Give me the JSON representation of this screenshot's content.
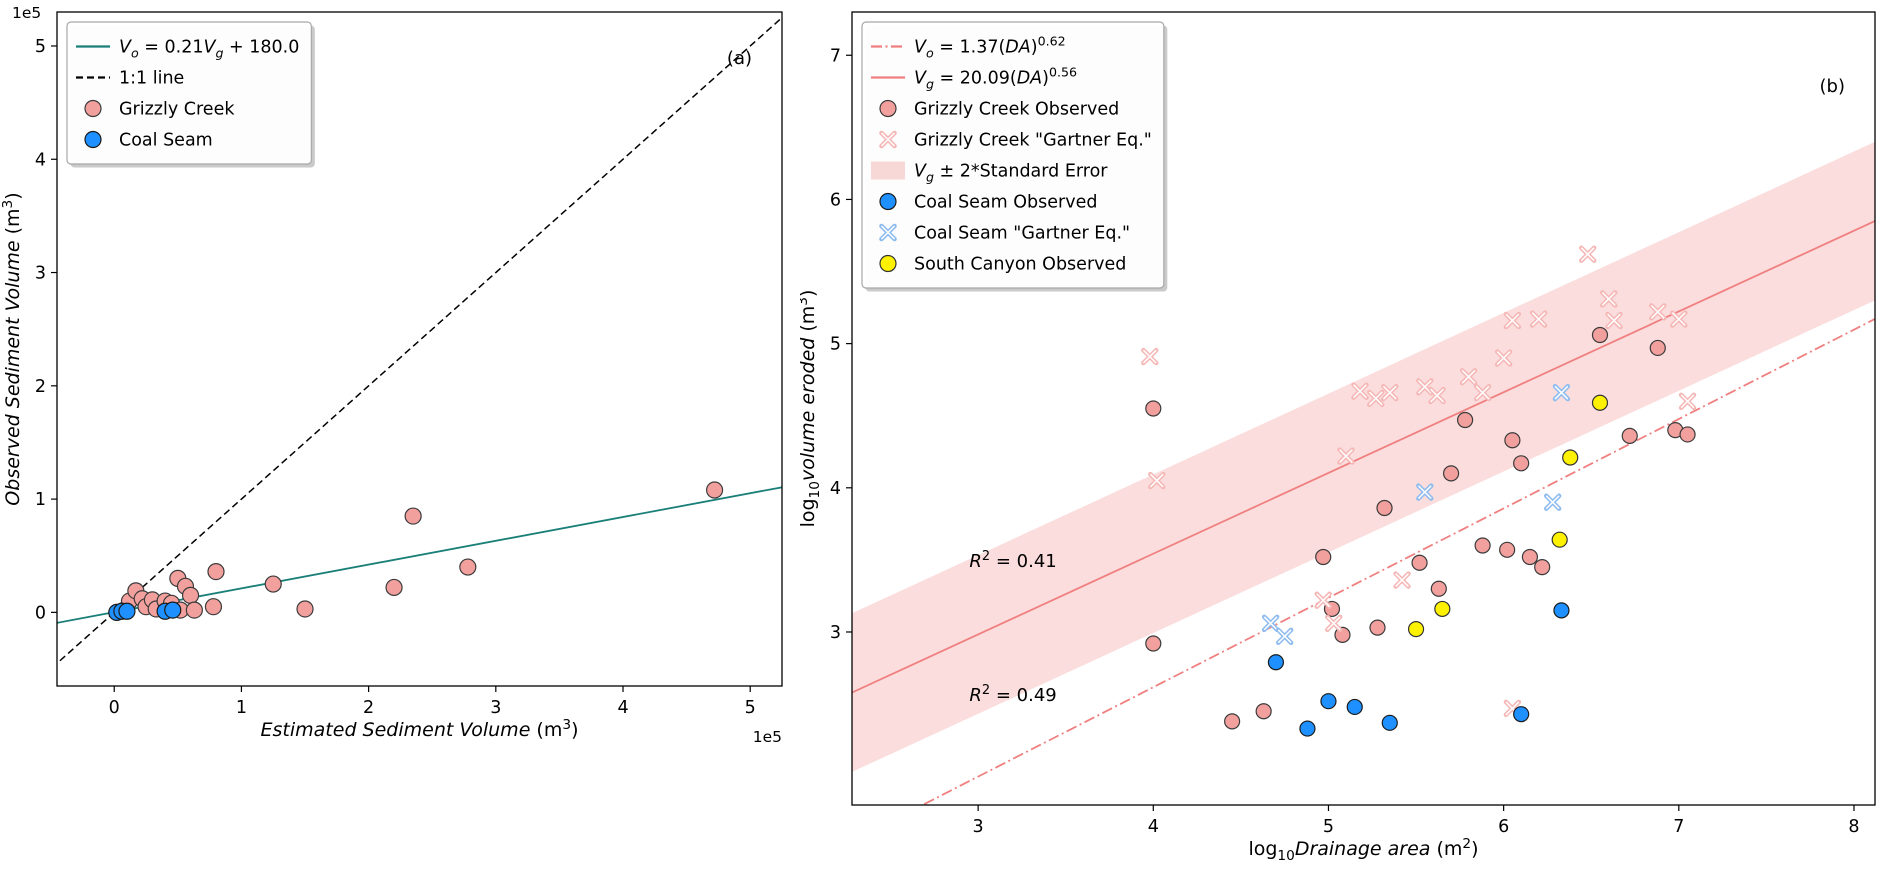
{
  "figure": {
    "background": "#ffffff"
  },
  "chart_data": [
    {
      "id": "panel_a",
      "type": "scatter",
      "panel_label": "(a)",
      "xlabel": "$Estimated Sediment Volume$ (m^{3})",
      "ylabel": "$Observed Sediment Volume$ (m^{3})",
      "x_offset_text": "1e5",
      "y_offset_text": "1e5",
      "xlim": [
        -0.45,
        5.25
      ],
      "ylim": [
        -0.65,
        5.3
      ],
      "xticks": [
        0,
        1,
        2,
        3,
        4,
        5
      ],
      "yticks": [
        0,
        1,
        2,
        3,
        4,
        5
      ],
      "lines": [
        {
          "name": "fit-line",
          "label": "$V_{o}$ = 0.21$V_{g}$ + 180.0",
          "slope": 0.21,
          "intercept": 0.0018,
          "color": "#1a7f78",
          "dash": "solid",
          "width": 1.8
        },
        {
          "name": "one-to-one-line",
          "label": "1:1 line",
          "slope": 1,
          "intercept": 0,
          "color": "#000000",
          "dash": "dashed",
          "width": 1.5
        }
      ],
      "series": [
        {
          "name": "grizzly-creek",
          "label": "Grizzly Creek",
          "marker": "circle",
          "fill": "#F2A09D",
          "edge": "#3b3b3b",
          "size": 8,
          "points": [
            [
              0.08,
              0.02
            ],
            [
              0.12,
              0.1
            ],
            [
              0.17,
              0.19
            ],
            [
              0.22,
              0.12
            ],
            [
              0.25,
              0.05
            ],
            [
              0.3,
              0.11
            ],
            [
              0.33,
              0.03
            ],
            [
              0.4,
              0.1
            ],
            [
              0.45,
              0.08
            ],
            [
              0.5,
              0.3
            ],
            [
              0.52,
              0.02
            ],
            [
              0.56,
              0.23
            ],
            [
              0.6,
              0.15
            ],
            [
              0.63,
              0.02
            ],
            [
              0.78,
              0.05
            ],
            [
              0.8,
              0.36
            ],
            [
              1.25,
              0.25
            ],
            [
              1.5,
              0.03
            ],
            [
              2.2,
              0.22
            ],
            [
              2.35,
              0.85
            ],
            [
              2.78,
              0.4
            ],
            [
              4.72,
              1.08
            ]
          ]
        },
        {
          "name": "coal-seam",
          "label": "Coal Seam",
          "marker": "circle",
          "fill": "#1E90FF",
          "edge": "#1a1a1a",
          "size": 8,
          "points": [
            [
              0.02,
              0.0
            ],
            [
              0.06,
              0.01
            ],
            [
              0.1,
              0.01
            ],
            [
              0.4,
              0.01
            ],
            [
              0.46,
              0.02
            ]
          ]
        }
      ],
      "legend": [
        {
          "sample": "line",
          "dash": "solid",
          "color": "#1a7f78",
          "label": "$V_{o}$ = 0.21$V_{g}$ + 180.0"
        },
        {
          "sample": "line",
          "dash": "dashed",
          "color": "#000000",
          "label": "1:1 line"
        },
        {
          "sample": "circle",
          "fill": "#F2A09D",
          "edge": "#3b3b3b",
          "label": "Grizzly Creek"
        },
        {
          "sample": "circle",
          "fill": "#1E90FF",
          "edge": "#1a1a1a",
          "label": "Coal Seam"
        }
      ],
      "annotations": []
    },
    {
      "id": "panel_b",
      "type": "scatter",
      "panel_label": "(b)",
      "xlabel": "log_{10}$Drainage area$ (m^{2})",
      "ylabel": "log_{10}$volume eroded$ (m^{3})",
      "xlim": [
        2.28,
        8.12
      ],
      "ylim": [
        1.8,
        7.3
      ],
      "xticks": [
        3,
        4,
        5,
        6,
        7,
        8
      ],
      "yticks": [
        3,
        4,
        5,
        6,
        7
      ],
      "band": {
        "name": "vg-standard-error-band",
        "label": "$V_{g}$ ± 2*Standard Error",
        "slope": 0.56,
        "intercept": 1.303,
        "half_width": 0.55,
        "color": "#F08080",
        "opacity": 0.27
      },
      "lines": [
        {
          "name": "vo-gartner-fit-line",
          "label": "$V_{o}$ = 1.37($DA$)^{0.62}",
          "slope": 0.62,
          "intercept": 0.137,
          "color": "#F08080",
          "dash": "dashdot",
          "width": 1.8
        },
        {
          "name": "vg-fit-line",
          "label": "$V_{g}$ = 20.09($DA$)^{0.56}",
          "slope": 0.56,
          "intercept": 1.303,
          "color": "#F08080",
          "dash": "solid",
          "width": 1.8
        }
      ],
      "series": [
        {
          "name": "grizzly-creek-observed",
          "label": "Grizzly Creek Observed",
          "marker": "circle",
          "fill": "#F2A09D",
          "edge": "#3b3b3b",
          "size": 7.5,
          "points": [
            [
              4.0,
              4.55
            ],
            [
              4.0,
              2.92
            ],
            [
              4.45,
              2.38
            ],
            [
              4.63,
              2.45
            ],
            [
              4.97,
              3.52
            ],
            [
              5.02,
              3.16
            ],
            [
              5.08,
              2.98
            ],
            [
              5.28,
              3.03
            ],
            [
              5.32,
              3.86
            ],
            [
              5.52,
              3.48
            ],
            [
              5.63,
              3.3
            ],
            [
              5.7,
              4.1
            ],
            [
              5.78,
              4.47
            ],
            [
              5.88,
              3.6
            ],
            [
              6.02,
              3.57
            ],
            [
              6.05,
              4.33
            ],
            [
              6.1,
              4.17
            ],
            [
              6.15,
              3.52
            ],
            [
              6.22,
              3.45
            ],
            [
              6.55,
              5.06
            ],
            [
              6.72,
              4.36
            ],
            [
              6.88,
              4.97
            ],
            [
              6.98,
              4.4
            ],
            [
              7.05,
              4.37
            ]
          ]
        },
        {
          "name": "grizzly-creek-gartner",
          "label": "Grizzly Creek \"Gartner Eq.\"",
          "marker": "x",
          "color": "#F5B8B6",
          "size": 6.4,
          "points": [
            [
              3.98,
              4.91
            ],
            [
              4.02,
              4.05
            ],
            [
              4.97,
              3.22
            ],
            [
              5.03,
              3.06
            ],
            [
              5.1,
              4.22
            ],
            [
              5.18,
              4.67
            ],
            [
              5.27,
              4.62
            ],
            [
              5.35,
              4.66
            ],
            [
              5.42,
              3.36
            ],
            [
              5.55,
              4.7
            ],
            [
              5.62,
              4.64
            ],
            [
              5.8,
              4.77
            ],
            [
              5.88,
              4.66
            ],
            [
              6.0,
              4.9
            ],
            [
              6.05,
              5.16
            ],
            [
              6.05,
              2.47
            ],
            [
              6.2,
              5.17
            ],
            [
              6.48,
              5.62
            ],
            [
              6.6,
              5.31
            ],
            [
              6.63,
              5.16
            ],
            [
              6.88,
              5.22
            ],
            [
              7.0,
              5.17
            ],
            [
              7.05,
              4.6
            ]
          ]
        },
        {
          "name": "coal-seam-observed",
          "label": "Coal Seam Observed",
          "marker": "circle",
          "fill": "#1E90FF",
          "edge": "#1a1a1a",
          "size": 7.5,
          "points": [
            [
              4.7,
              2.79
            ],
            [
              4.88,
              2.33
            ],
            [
              5.0,
              2.52
            ],
            [
              5.15,
              2.48
            ],
            [
              5.35,
              2.37
            ],
            [
              6.1,
              2.43
            ],
            [
              6.33,
              3.15
            ]
          ]
        },
        {
          "name": "coal-seam-gartner",
          "label": "Coal Seam \"Gartner Eq.\"",
          "marker": "x",
          "color": "#8FBCEF",
          "size": 6.4,
          "points": [
            [
              4.67,
              3.06
            ],
            [
              4.75,
              2.97
            ],
            [
              5.55,
              3.97
            ],
            [
              6.28,
              3.9
            ],
            [
              6.33,
              4.66
            ]
          ]
        },
        {
          "name": "south-canyon-observed",
          "label": "South Canyon Observed",
          "marker": "circle",
          "fill": "#FFF200",
          "edge": "#333333",
          "size": 7.5,
          "points": [
            [
              5.5,
              3.02
            ],
            [
              5.65,
              3.16
            ],
            [
              6.32,
              3.64
            ],
            [
              6.38,
              4.21
            ],
            [
              6.55,
              4.59
            ]
          ]
        }
      ],
      "legend": [
        {
          "sample": "line",
          "dash": "dashdot",
          "color": "#F08080",
          "label": "$V_{o}$ = 1.37($DA$)^{0.62}"
        },
        {
          "sample": "line",
          "dash": "solid",
          "color": "#F08080",
          "label": "$V_{g}$ = 20.09($DA$)^{0.56}"
        },
        {
          "sample": "circle",
          "fill": "#F2A09D",
          "edge": "#3b3b3b",
          "label": "Grizzly Creek Observed"
        },
        {
          "sample": "x",
          "color": "#F5B8B6",
          "label": "Grizzly Creek \"Gartner Eq.\""
        },
        {
          "sample": "patch",
          "fill": "#F08080",
          "opacity": 0.3,
          "label": "$V_{g}$ ± 2*Standard Error"
        },
        {
          "sample": "circle",
          "fill": "#1E90FF",
          "edge": "#1a1a1a",
          "label": "Coal Seam Observed"
        },
        {
          "sample": "x",
          "color": "#8FBCEF",
          "label": "Coal Seam \"Gartner Eq.\""
        },
        {
          "sample": "circle",
          "fill": "#FFF200",
          "edge": "#333333",
          "label": "South Canyon Observed"
        }
      ],
      "annotations": [
        {
          "name": "r-squared-vg",
          "text": "$R$^{2} = 0.41",
          "x": 2.95,
          "y": 3.45
        },
        {
          "name": "r-squared-vo",
          "text": "$R$^{2} = 0.49",
          "x": 2.95,
          "y": 2.52
        }
      ]
    }
  ]
}
